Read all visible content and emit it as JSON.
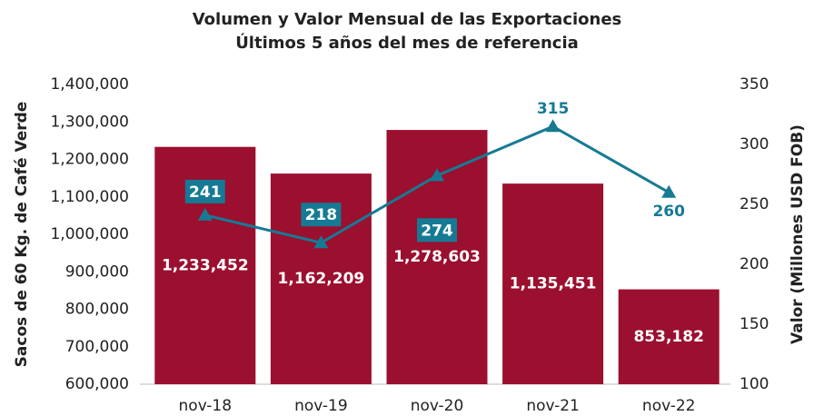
{
  "chart_data": {
    "type": "bar",
    "title": [
      "Volumen y Valor Mensual de las Exportaciones",
      "Últimos 5 años del mes de referencia"
    ],
    "y_label": "Sacos de 60 Kg. de Café Verde",
    "y2_label": "Valor (Millones USD FOB)",
    "categories": [
      "nov-18",
      "nov-19",
      "nov-20",
      "nov-21",
      "nov-22"
    ],
    "series": [
      {
        "type": "bar",
        "color": "#9b0f2f",
        "values": [
          1233452,
          1162209,
          1278603,
          1135451,
          853182
        ],
        "value_labels": [
          "1,233,452",
          "1,162,209",
          "1,278,603",
          "1,135,451",
          "853,182"
        ]
      },
      {
        "type": "line",
        "axis": "y2",
        "color": "#167a94",
        "values": [
          241,
          218,
          274,
          315,
          260
        ]
      }
    ],
    "ylim": [
      600000,
      1400000
    ],
    "yticks": [
      {
        "value": 600000,
        "label": "600,000"
      },
      {
        "value": 700000,
        "label": "700,000"
      },
      {
        "value": 800000,
        "label": "800,000"
      },
      {
        "value": 900000,
        "label": "900,000"
      },
      {
        "value": 1000000,
        "label": "1,000,000"
      },
      {
        "value": 1100000,
        "label": "1,100,000"
      },
      {
        "value": 1200000,
        "label": "1,200,000"
      },
      {
        "value": 1300000,
        "label": "1,300,000"
      },
      {
        "value": 1400000,
        "label": "1,400,000"
      }
    ],
    "y2lim": [
      100,
      350
    ],
    "y2ticks": [
      100,
      150,
      200,
      250,
      300,
      350
    ],
    "grid": false
  }
}
